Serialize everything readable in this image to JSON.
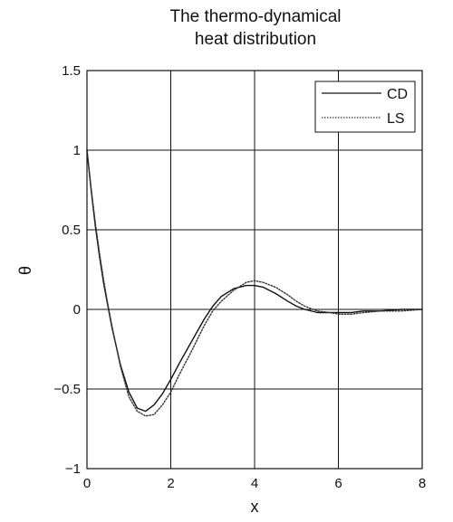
{
  "chart_data": {
    "type": "line",
    "title_lines": [
      "The thermo-dynamical",
      "heat distribution"
    ],
    "xlabel": "x",
    "ylabel": "θ",
    "xlim": [
      0,
      8
    ],
    "ylim": [
      -1,
      1.5
    ],
    "xticks": [
      0,
      2,
      4,
      6,
      8
    ],
    "yticks": [
      -1,
      -0.5,
      0,
      0.5,
      1,
      1.5
    ],
    "xtick_labels": [
      "0",
      "2",
      "4",
      "6",
      "8"
    ],
    "ytick_labels": [
      "−1",
      "−0.5",
      "0",
      "0.5",
      "1",
      "1.5"
    ],
    "grid": true,
    "legend_position": "top-right",
    "series": [
      {
        "name": "CD",
        "style": "solid",
        "color": "#111111",
        "x": [
          0,
          0.1,
          0.2,
          0.3,
          0.4,
          0.5,
          0.6,
          0.8,
          1.0,
          1.2,
          1.4,
          1.6,
          1.8,
          2.0,
          2.2,
          2.5,
          2.8,
          3.0,
          3.2,
          3.5,
          3.8,
          4.0,
          4.2,
          4.5,
          4.8,
          5.0,
          5.2,
          5.5,
          5.8,
          6.0,
          6.3,
          6.6,
          7.0,
          7.5,
          8.0
        ],
        "y": [
          1.0,
          0.75,
          0.52,
          0.33,
          0.16,
          0.02,
          -0.12,
          -0.35,
          -0.52,
          -0.62,
          -0.64,
          -0.6,
          -0.53,
          -0.44,
          -0.34,
          -0.2,
          -0.06,
          0.02,
          0.08,
          0.13,
          0.15,
          0.15,
          0.14,
          0.1,
          0.05,
          0.02,
          0.0,
          -0.02,
          -0.02,
          -0.02,
          -0.02,
          -0.01,
          -0.01,
          0.0,
          0.0
        ]
      },
      {
        "name": "LS",
        "style": "dotted",
        "color": "#333333",
        "x": [
          0,
          0.1,
          0.2,
          0.3,
          0.4,
          0.5,
          0.6,
          0.8,
          1.0,
          1.2,
          1.4,
          1.6,
          1.8,
          2.0,
          2.2,
          2.5,
          2.8,
          3.0,
          3.2,
          3.5,
          3.8,
          4.0,
          4.2,
          4.5,
          4.8,
          5.0,
          5.2,
          5.5,
          5.8,
          6.0,
          6.3,
          6.6,
          7.0,
          7.5,
          8.0
        ],
        "y": [
          1.0,
          0.76,
          0.54,
          0.35,
          0.18,
          0.03,
          -0.11,
          -0.36,
          -0.55,
          -0.64,
          -0.67,
          -0.66,
          -0.6,
          -0.52,
          -0.41,
          -0.26,
          -0.1,
          -0.01,
          0.05,
          0.12,
          0.17,
          0.18,
          0.17,
          0.14,
          0.09,
          0.05,
          0.02,
          -0.01,
          -0.02,
          -0.03,
          -0.03,
          -0.02,
          -0.01,
          -0.01,
          0.0
        ]
      }
    ]
  }
}
